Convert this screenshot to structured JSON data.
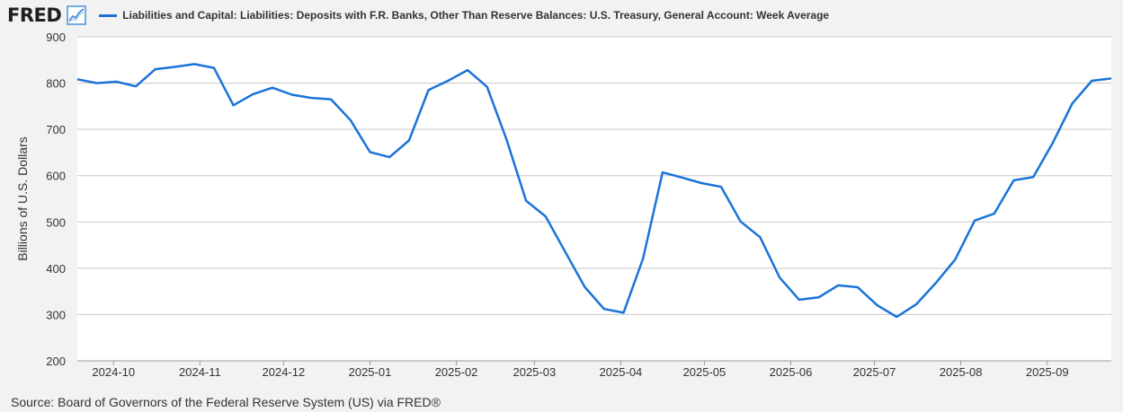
{
  "header": {
    "logo_text": "FRED",
    "logo_icon": "trend-line-icon"
  },
  "colors": {
    "series": "#1a73d8",
    "grid": "#c8c8c8",
    "plot_bg": "#ffffff",
    "page_bg": "#f2f2f2",
    "logo_icon": "#4a90d9"
  },
  "footer": {
    "source": "Source: Board of Governors of the Federal Reserve System (US) via FRED®"
  },
  "chart_data": {
    "type": "line",
    "title": "",
    "xlabel": "",
    "ylabel": "Billions of U.S. Dollars",
    "ylim": [
      200,
      900
    ],
    "yticks": [
      200,
      300,
      400,
      500,
      600,
      700,
      800,
      900
    ],
    "xlim": [
      "2024-09-18",
      "2025-09-24"
    ],
    "xticks": [
      "2024-10",
      "2024-11",
      "2024-12",
      "2025-01",
      "2025-02",
      "2025-03",
      "2025-04",
      "2025-05",
      "2025-06",
      "2025-07",
      "2025-08",
      "2025-09"
    ],
    "grid": true,
    "legend_position": "top",
    "series": [
      {
        "name": "Liabilities and Capital: Liabilities: Deposits with F.R. Banks, Other Than Reserve Balances: U.S. Treasury, General Account: Week Average",
        "x": [
          "2024-09-18",
          "2024-09-25",
          "2024-10-02",
          "2024-10-09",
          "2024-10-16",
          "2024-10-23",
          "2024-10-30",
          "2024-11-06",
          "2024-11-13",
          "2024-11-20",
          "2024-11-27",
          "2024-12-04",
          "2024-12-11",
          "2024-12-18",
          "2024-12-25",
          "2025-01-01",
          "2025-01-08",
          "2025-01-15",
          "2025-01-22",
          "2025-01-29",
          "2025-02-05",
          "2025-02-12",
          "2025-02-19",
          "2025-02-26",
          "2025-03-05",
          "2025-03-12",
          "2025-03-19",
          "2025-03-26",
          "2025-04-02",
          "2025-04-09",
          "2025-04-16",
          "2025-04-23",
          "2025-04-30",
          "2025-05-07",
          "2025-05-14",
          "2025-05-21",
          "2025-05-28",
          "2025-06-04",
          "2025-06-11",
          "2025-06-18",
          "2025-06-25",
          "2025-07-02",
          "2025-07-09",
          "2025-07-16",
          "2025-07-23",
          "2025-07-30",
          "2025-08-06",
          "2025-08-13",
          "2025-08-20",
          "2025-08-27",
          "2025-09-03",
          "2025-09-10",
          "2025-09-17",
          "2025-09-24"
        ],
        "values": [
          808,
          800,
          803,
          793,
          830,
          835,
          841,
          833,
          752,
          776,
          790,
          775,
          768,
          765,
          720,
          651,
          640,
          676,
          785,
          805,
          828,
          792,
          678,
          546,
          512,
          436,
          360,
          312,
          304,
          421,
          607,
          596,
          584,
          576,
          501,
          467,
          380,
          332,
          337,
          363,
          359,
          320,
          295,
          322,
          368,
          419,
          503,
          518,
          590,
          597,
          671,
          756,
          805,
          810
        ]
      }
    ]
  }
}
